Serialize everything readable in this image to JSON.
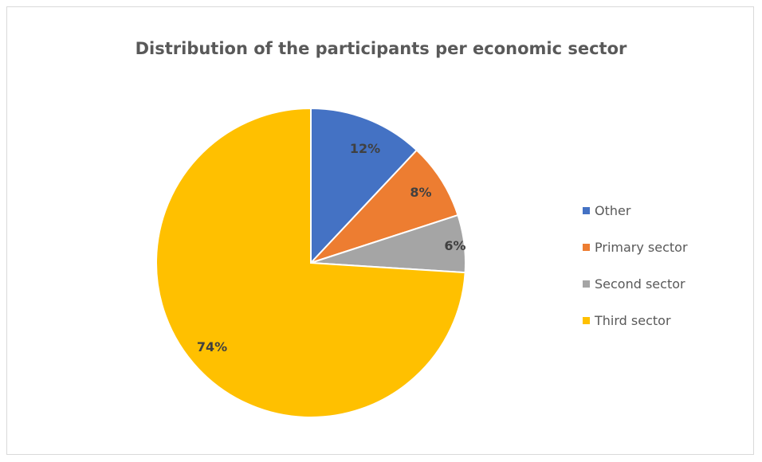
{
  "chart_data": {
    "type": "pie",
    "title": "Distribution of the participants per economic sector",
    "slices": [
      {
        "name": "Other",
        "value": 12,
        "label": "12%",
        "color": "#4472C4"
      },
      {
        "name": "Primary sector",
        "value": 8,
        "label": "8%",
        "color": "#ED7D31"
      },
      {
        "name": "Second sector",
        "value": 6,
        "label": "6%",
        "color": "#A5A5A5"
      },
      {
        "name": "Third sector",
        "value": 74,
        "label": "74%",
        "color": "#FFC000"
      }
    ],
    "legend_position": "right"
  }
}
